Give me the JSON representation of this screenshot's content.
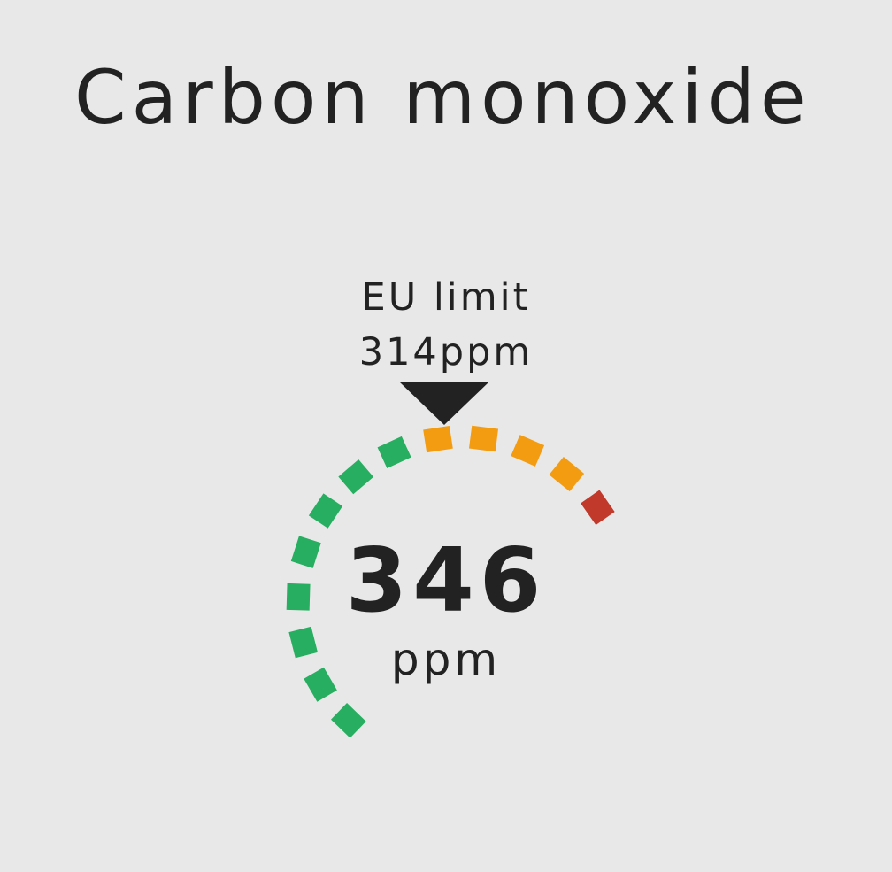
{
  "title": "Carbon monoxide",
  "limit": {
    "label": "EU limit",
    "value_text": "314ppm",
    "marker_color": "#222222",
    "marker_icon": "triangle-down"
  },
  "reading": {
    "value": "346",
    "unit": "ppm"
  },
  "gauge": {
    "segment_count": 13,
    "segment_colors": [
      "#27ae60",
      "#27ae60",
      "#27ae60",
      "#27ae60",
      "#27ae60",
      "#27ae60",
      "#27ae60",
      "#27ae60",
      "#f39c12",
      "#f39c12",
      "#f39c12",
      "#f39c12",
      "#c0392b"
    ],
    "colors": {
      "good": "#27ae60",
      "moderate": "#f39c12",
      "bad": "#c0392b"
    }
  },
  "colors": {
    "background": "#e8e8e8",
    "text": "#222222"
  }
}
